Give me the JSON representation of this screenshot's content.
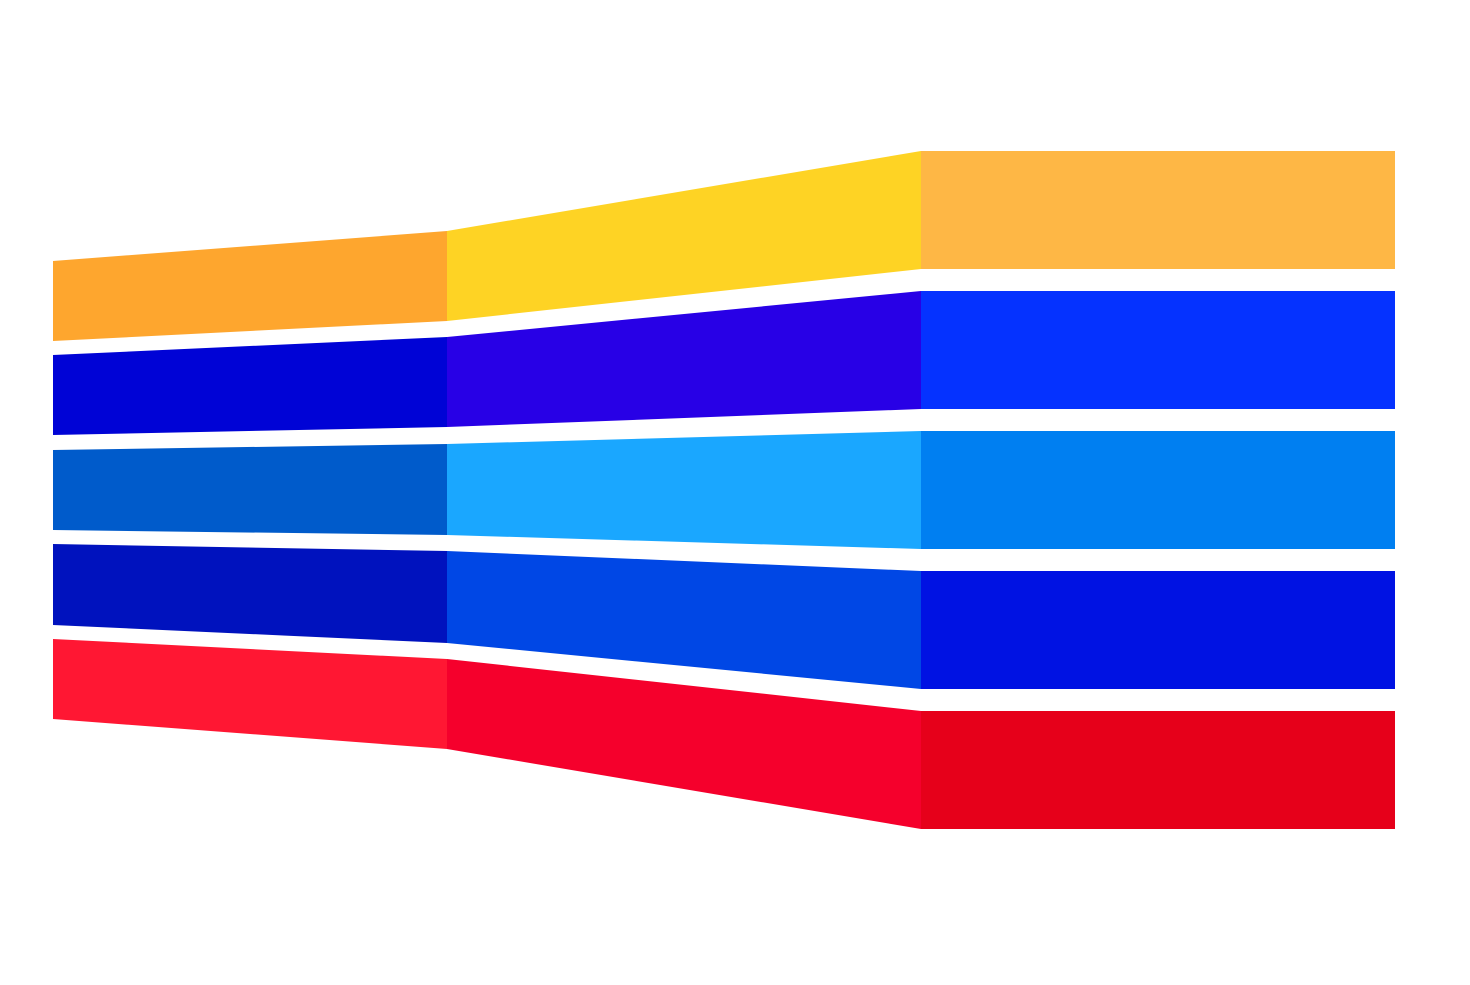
{
  "diagram": {
    "background": "#ffffff",
    "bands": [
      {
        "name": "band-1",
        "colors": [
          "#FEA62E",
          "#FED324",
          "#FEB745"
        ]
      },
      {
        "name": "band-2",
        "colors": [
          "#0003D6",
          "#2800E6",
          "#0532FF"
        ]
      },
      {
        "name": "band-3",
        "colors": [
          "#005BCB",
          "#1AA7FF",
          "#007FF1"
        ]
      },
      {
        "name": "band-4",
        "colors": [
          "#0012BE",
          "#0047E5",
          "#0012E3"
        ]
      },
      {
        "name": "band-5",
        "colors": [
          "#FF1733",
          "#F5002C",
          "#E6001A"
        ]
      }
    ]
  }
}
